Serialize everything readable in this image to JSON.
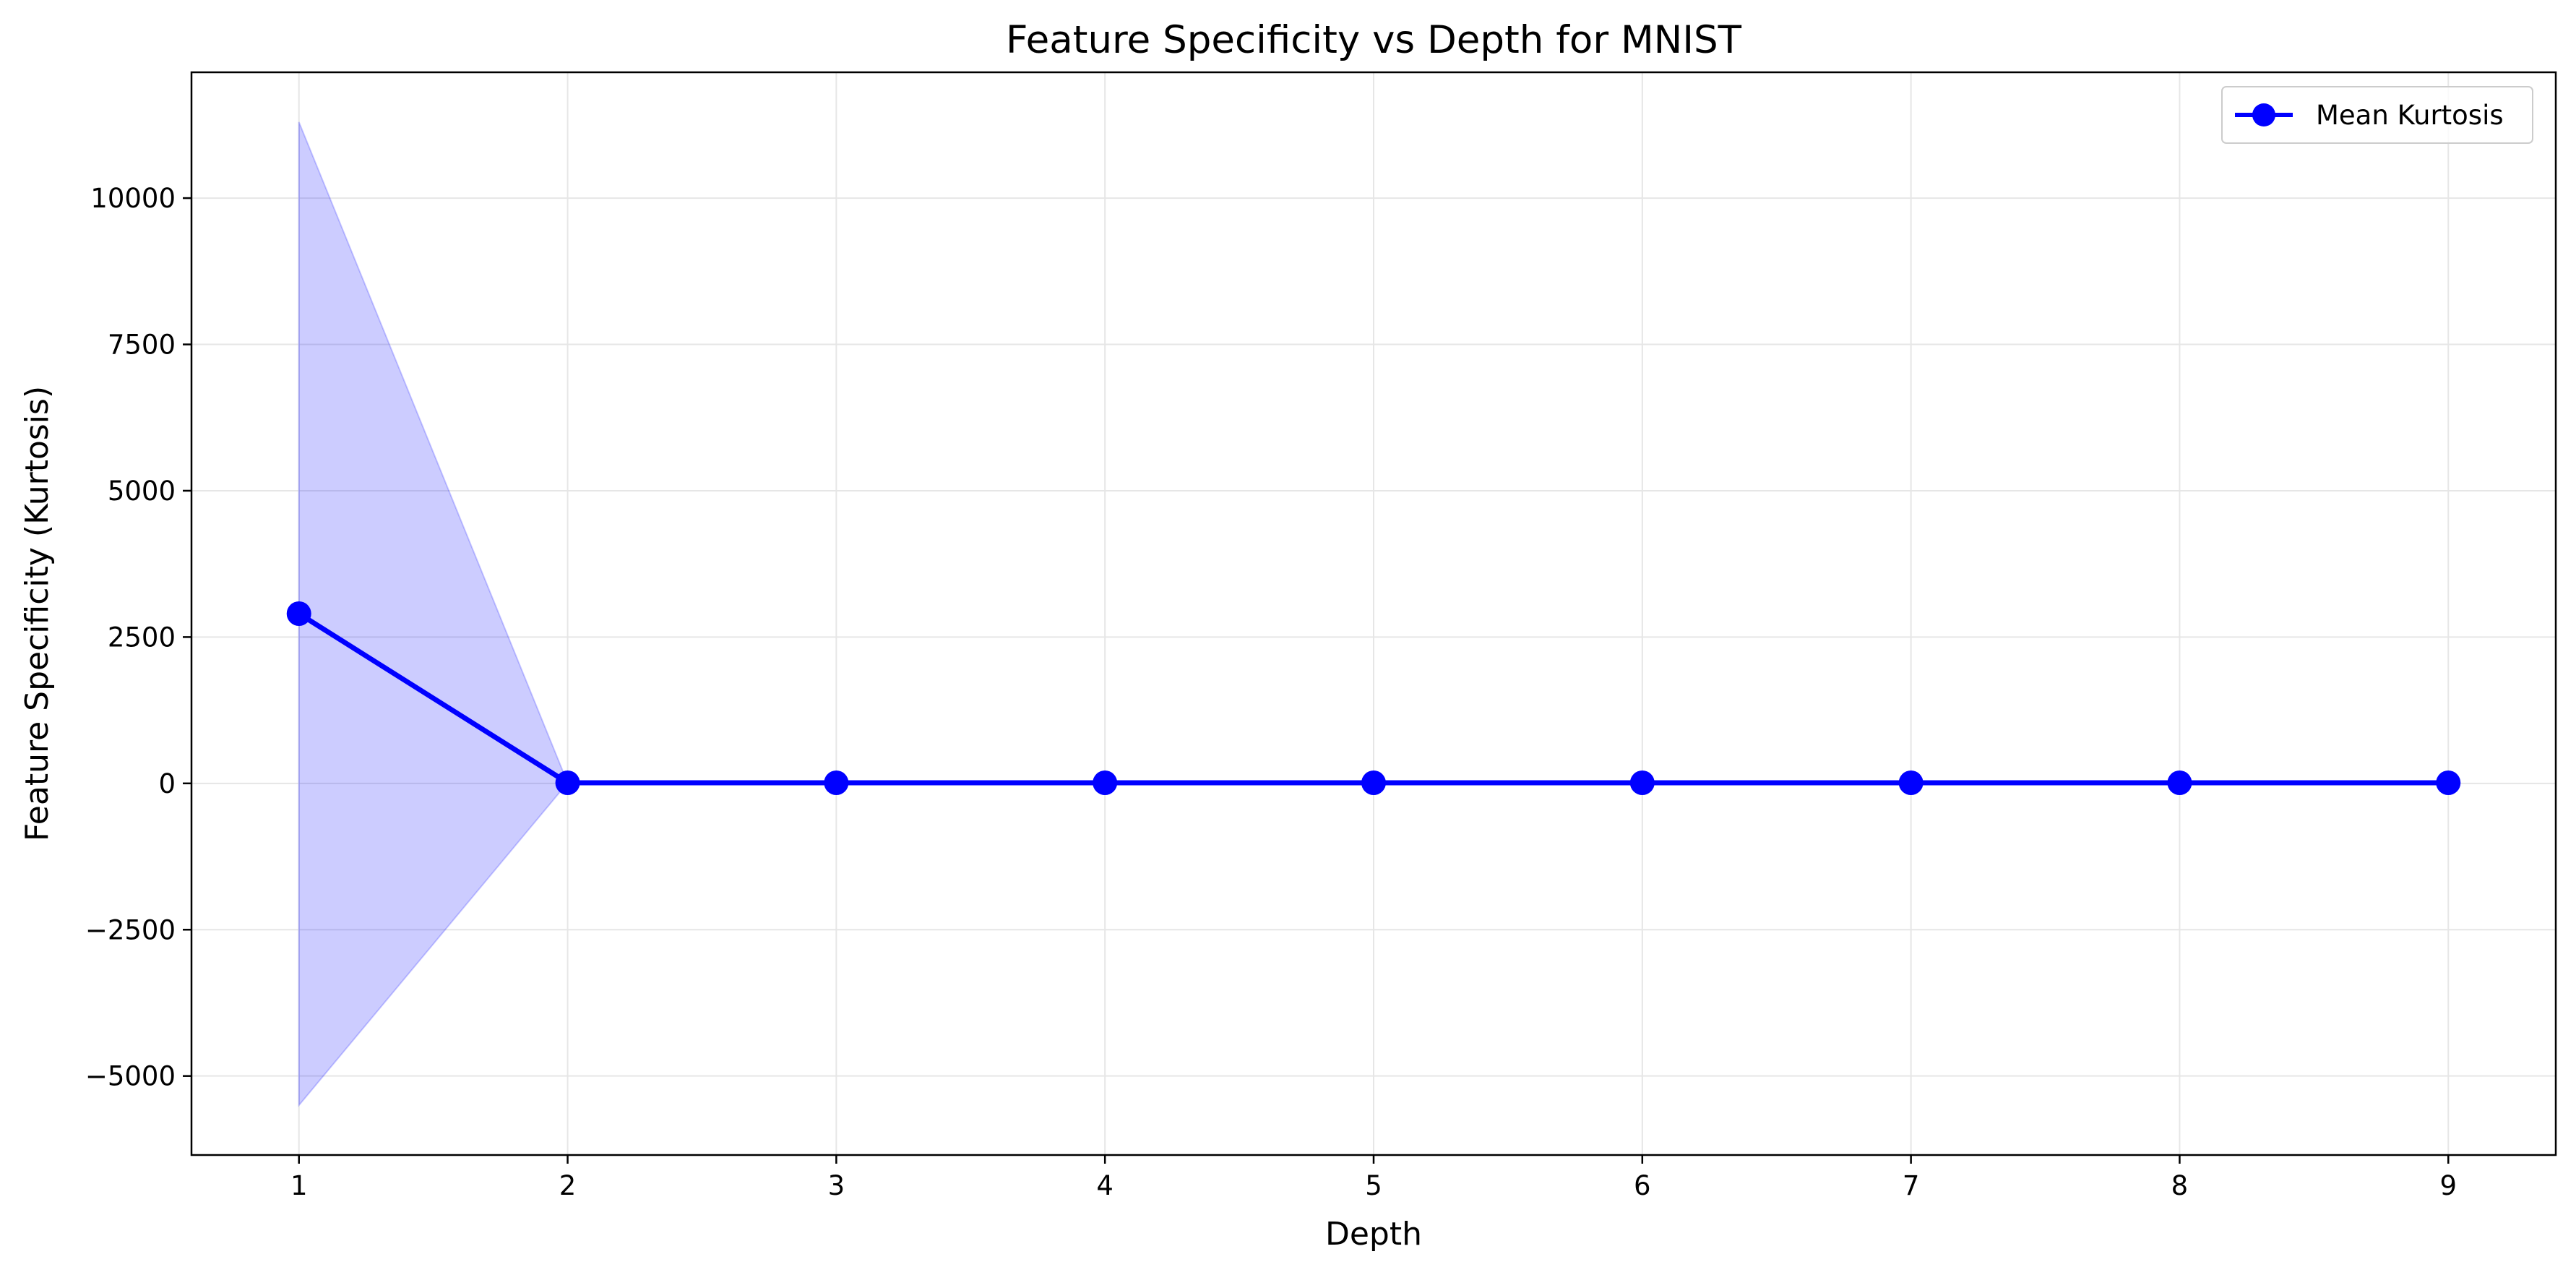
{
  "chart_data": {
    "type": "line",
    "title": "Feature Specificity vs Depth for MNIST",
    "xlabel": "Depth",
    "ylabel": "Feature Specificity (Kurtosis)",
    "x": [
      1,
      2,
      3,
      4,
      5,
      6,
      7,
      8,
      9
    ],
    "xticks": [
      "1",
      "2",
      "3",
      "4",
      "5",
      "6",
      "7",
      "8",
      "9"
    ],
    "yticks": [
      "−5000",
      "−2500",
      "0",
      "2500",
      "5000",
      "7500",
      "10000"
    ],
    "ytick_values": [
      -5000,
      -2500,
      0,
      2500,
      5000,
      7500,
      10000
    ],
    "xlim": [
      0.6,
      9.4
    ],
    "ylim": [
      -6350,
      12150
    ],
    "grid": true,
    "legend_position": "top-right",
    "series": [
      {
        "name": "Mean Kurtosis",
        "color": "#0000ff",
        "marker": "circle",
        "values": [
          2900,
          10,
          10,
          10,
          10,
          10,
          10,
          10,
          10
        ],
        "band_upper": [
          11300,
          10,
          10,
          10,
          10,
          10,
          10,
          10,
          10
        ],
        "band_lower": [
          -5500,
          10,
          10,
          10,
          10,
          10,
          10,
          10,
          10
        ],
        "band_color": "#0000ff"
      }
    ]
  }
}
